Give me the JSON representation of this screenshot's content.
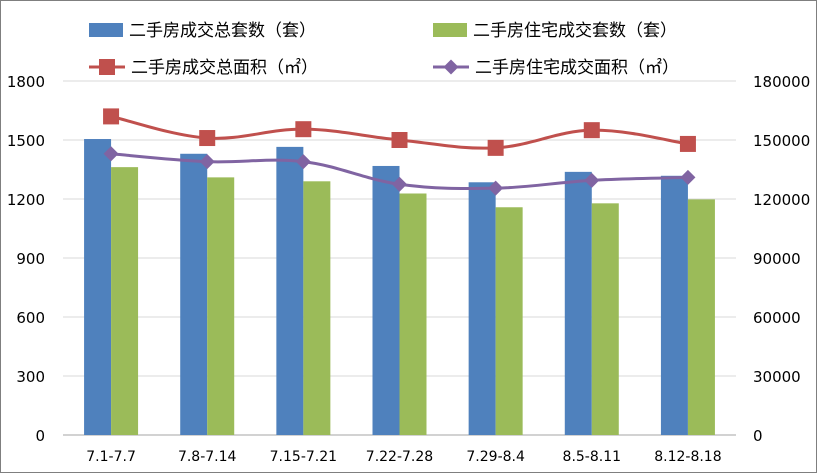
{
  "chart_data": {
    "type": "bar+line",
    "categories": [
      "7.1-7.7",
      "7.8-7.14",
      "7.15-7.21",
      "7.22-7.28",
      "7.29-8.4",
      "8.5-8.11",
      "8.12-8.18"
    ],
    "bar_series": [
      {
        "name": "二手房成交总套数（套）",
        "color": "#4f81bd",
        "values": [
          1505,
          1430,
          1465,
          1368,
          1285,
          1338,
          1318
        ]
      },
      {
        "name": "二手房住宅成交套数（套）",
        "color": "#9bbb59",
        "values": [
          1362,
          1310,
          1290,
          1228,
          1158,
          1178,
          1198
        ]
      }
    ],
    "line_series": [
      {
        "name": "二手房成交总面积（㎡）",
        "color": "#c0504d",
        "marker": "square",
        "values": [
          162000,
          151000,
          155500,
          150000,
          146000,
          155000,
          148000
        ]
      },
      {
        "name": "二手房住宅成交面积（㎡）",
        "color": "#8064a2",
        "marker": "diamond",
        "values": [
          143000,
          139000,
          139000,
          127500,
          125500,
          129500,
          131000
        ]
      }
    ],
    "y_left": {
      "min": 0,
      "max": 1800,
      "ticks": [
        0,
        300,
        600,
        900,
        1200,
        1500,
        1800
      ]
    },
    "y_right": {
      "min": 0,
      "max": 180000,
      "ticks": [
        0,
        30000,
        60000,
        90000,
        120000,
        150000,
        180000
      ]
    },
    "grid": true,
    "legend_position": "top"
  }
}
